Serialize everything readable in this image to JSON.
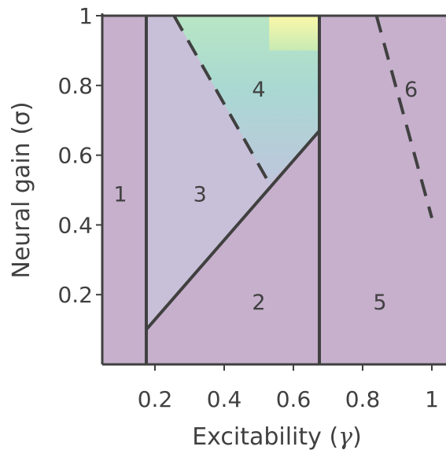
{
  "chart_data": {
    "type": "heatmap",
    "title": "",
    "xlabel_text": "Excitability (",
    "xlabel_symbol": "γ",
    "xlabel_close": ")",
    "ylabel": "Neural gain (σ)",
    "xlim": [
      0.02,
      1.0
    ],
    "ylim": [
      0.0,
      1.0
    ],
    "xticks": [
      0.2,
      0.4,
      0.6,
      0.8,
      1.0
    ],
    "xtick_labels": [
      "0.2",
      "0.4",
      "0.6",
      "0.8",
      "1"
    ],
    "yticks": [
      0.2,
      0.4,
      0.6,
      0.8,
      1.0
    ],
    "ytick_labels": [
      "0.2",
      "0.4",
      "0.6",
      "0.8",
      "1"
    ],
    "colormap": "viridis",
    "colors": {
      "base": "#c6b0cc",
      "low": "#c8c0d8",
      "mid": "#aedcd2",
      "high": "#fbf8a8",
      "line": "#404040"
    },
    "boundaries": {
      "solid_vertical_x": [
        0.175,
        0.675
      ],
      "solid_diagonal": [
        [
          0.175,
          0.1
        ],
        [
          0.675,
          0.67
        ]
      ],
      "dashed": [
        [
          [
            0.255,
            1.0
          ],
          [
            0.53,
            0.52
          ]
        ],
        [
          [
            0.84,
            1.0
          ],
          [
            1.0,
            0.42
          ]
        ]
      ]
    },
    "regions": [
      {
        "label": "1",
        "x": 0.1,
        "y": 0.49
      },
      {
        "label": "2",
        "x": 0.5,
        "y": 0.18
      },
      {
        "label": "3",
        "x": 0.33,
        "y": 0.49
      },
      {
        "label": "4",
        "x": 0.5,
        "y": 0.79
      },
      {
        "label": "5",
        "x": 0.85,
        "y": 0.18
      },
      {
        "label": "6",
        "x": 0.94,
        "y": 0.79
      }
    ]
  }
}
